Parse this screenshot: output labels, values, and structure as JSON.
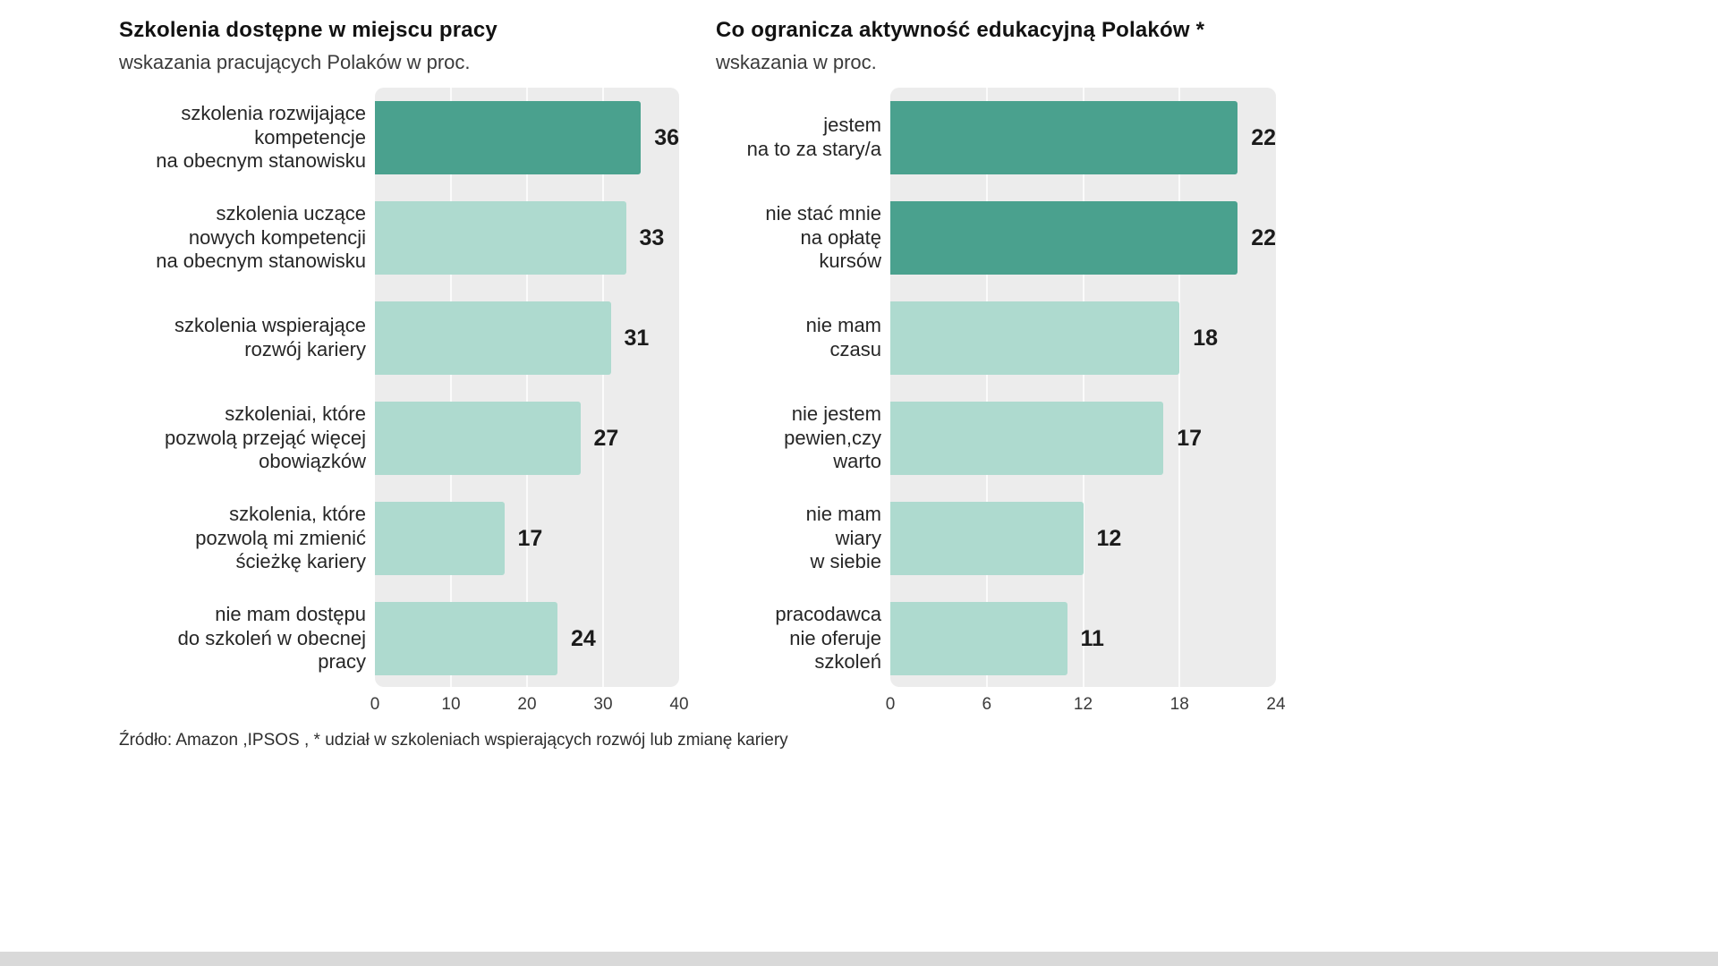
{
  "colors": {
    "bar_dark": "#4aa18e",
    "bar_light": "#aedacf",
    "plot_bg": "#ececec"
  },
  "footer": "Źródło: Amazon ,IPSOS , * udział w szkoleniach wspierających rozwój lub zmianę kariery",
  "chart_data": [
    {
      "type": "bar",
      "orientation": "horizontal",
      "title": "Szkolenia dostępne w miejscu pracy",
      "subtitle": "wskazania pracujących Polaków w proc.",
      "xlim": [
        0,
        40
      ],
      "grid": true,
      "ticks": [
        0,
        10,
        20,
        30,
        40
      ],
      "rows": [
        {
          "label": "szkolenia rozwijające\nkompetencje\nna obecnym stanowisku",
          "value": 36,
          "highlight": true
        },
        {
          "label": "szkolenia uczące\nnowych kompetencji\nna obecnym stanowisku",
          "value": 33,
          "highlight": false
        },
        {
          "label": "szkolenia wspierające\nrozwój kariery",
          "value": 31,
          "highlight": false
        },
        {
          "label": "szkoleniai, które\npozwolą przejąć więcej\nobowiązków",
          "value": 27,
          "highlight": false
        },
        {
          "label": "szkolenia, które\npozwolą mi zmienić\nścieżkę kariery",
          "value": 17,
          "highlight": false
        },
        {
          "label": "nie mam dostępu\ndo szkoleń w obecnej\npracy",
          "value": 24,
          "highlight": false
        }
      ]
    },
    {
      "type": "bar",
      "orientation": "horizontal",
      "title": "Co ogranicza aktywność edukacyjną Polaków *",
      "subtitle": "wskazania w proc.",
      "xlim": [
        0,
        24
      ],
      "grid": true,
      "ticks": [
        0,
        6,
        12,
        18,
        24
      ],
      "rows": [
        {
          "label": "jestem\nna to za stary/a",
          "value": 22,
          "highlight": true
        },
        {
          "label": "nie stać mnie\nna opłatę\nkursów",
          "value": 22,
          "highlight": true
        },
        {
          "label": "nie mam\nczasu",
          "value": 18,
          "highlight": false
        },
        {
          "label": "nie jestem\npewien,czy\nwarto",
          "value": 17,
          "highlight": false
        },
        {
          "label": "nie mam\nwiary\nw siebie",
          "value": 12,
          "highlight": false
        },
        {
          "label": "pracodawca\nnie oferuje\nszkoleń",
          "value": 11,
          "highlight": false
        }
      ]
    }
  ]
}
